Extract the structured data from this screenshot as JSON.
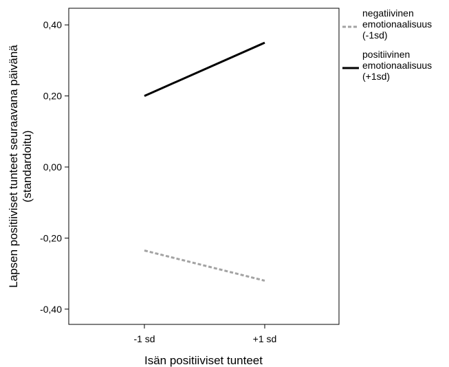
{
  "chart_data": {
    "type": "line",
    "categories": [
      "-1 sd",
      "+1 sd"
    ],
    "series": [
      {
        "name": "negatiivinen emotionaalisuus (-1sd)",
        "name_lines": [
          "negatiivinen",
          "emotionaalisuus",
          "(-1sd)"
        ],
        "values": [
          -0.235,
          -0.32
        ],
        "color": "#a3a3a3",
        "dashed": true
      },
      {
        "name": "positiivinen emotionaalisuus (+1sd)",
        "name_lines": [
          "positiivinen",
          "emotionaalisuus",
          "(+1sd)"
        ],
        "values": [
          0.2,
          0.35
        ],
        "color": "#000000",
        "dashed": false
      }
    ],
    "xlabel": "Isän positiiviset tunteet",
    "ylabel_lines": [
      "Lapsen positiiviset tunteet seuraavana päivänä",
      "(standardoitu)"
    ],
    "ylim": [
      -0.45,
      0.45
    ],
    "yticks": [
      -0.4,
      -0.2,
      0.0,
      0.2,
      0.4
    ],
    "ytick_labels": [
      "-0,40",
      "-0,20",
      "0,00",
      "0,20",
      "0,40"
    ],
    "grid": false,
    "legend_position": "right"
  }
}
